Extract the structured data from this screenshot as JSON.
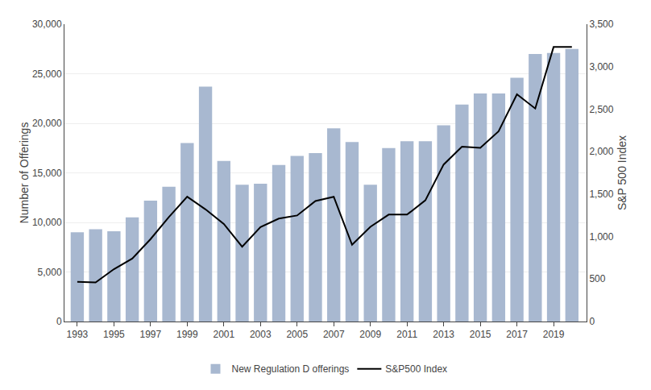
{
  "chart_data": {
    "type": "bar",
    "x": [
      1993,
      1994,
      1995,
      1996,
      1997,
      1998,
      1999,
      2000,
      2001,
      2002,
      2003,
      2004,
      2005,
      2006,
      2007,
      2008,
      2009,
      2010,
      2011,
      2012,
      2013,
      2014,
      2015,
      2016,
      2017,
      2018,
      2019,
      2020
    ],
    "series": [
      {
        "name": "New Regulation D offerings",
        "type": "bar",
        "color": "#a8b8d0",
        "values": [
          9000,
          9300,
          9100,
          10500,
          12200,
          13600,
          18000,
          23700,
          16200,
          13800,
          13900,
          15800,
          16700,
          17000,
          19500,
          18100,
          13800,
          17500,
          18200,
          18200,
          19800,
          21900,
          23000,
          23000,
          24600,
          27000,
          27100,
          27500
        ]
      },
      {
        "name": "S&P500 Index",
        "type": "line",
        "color": "#000000",
        "axis": "y2",
        "values": [
          466,
          459,
          616,
          741,
          970,
          1229,
          1469,
          1320,
          1148,
          880,
          1112,
          1212,
          1248,
          1418,
          1468,
          903,
          1115,
          1258,
          1258,
          1426,
          1848,
          2059,
          2044,
          2239,
          2674,
          2507,
          3231,
          3231
        ]
      }
    ],
    "ylabel": "Number of Offerings",
    "y2label": "S&P 500 Index",
    "xlim": [
      1992.3,
      2020.8
    ],
    "xticks": [
      1993,
      1995,
      1997,
      1999,
      2001,
      2003,
      2005,
      2007,
      2009,
      2011,
      2013,
      2015,
      2017,
      2019
    ],
    "ylim": [
      0,
      30000
    ],
    "yticks": [
      0,
      {
        "value": 5000,
        "label": "5,000"
      },
      {
        "value": 10000,
        "label": "10,000"
      },
      {
        "value": 15000,
        "label": "15,000"
      },
      {
        "value": 20000,
        "label": "20,000"
      },
      {
        "value": 25000,
        "label": "25,000"
      },
      {
        "value": 30000,
        "label": "30,000"
      }
    ],
    "y2lim": [
      0,
      3500
    ],
    "y2ticks": [
      0,
      500,
      {
        "value": 1000,
        "label": "1,000"
      },
      {
        "value": 1500,
        "label": "1,500"
      },
      {
        "value": 2000,
        "label": "2,000"
      },
      {
        "value": 2500,
        "label": "2,500"
      },
      {
        "value": 3000,
        "label": "3,000"
      },
      {
        "value": 3500,
        "label": "3,500"
      }
    ],
    "grid": true,
    "legend": "bottom"
  }
}
